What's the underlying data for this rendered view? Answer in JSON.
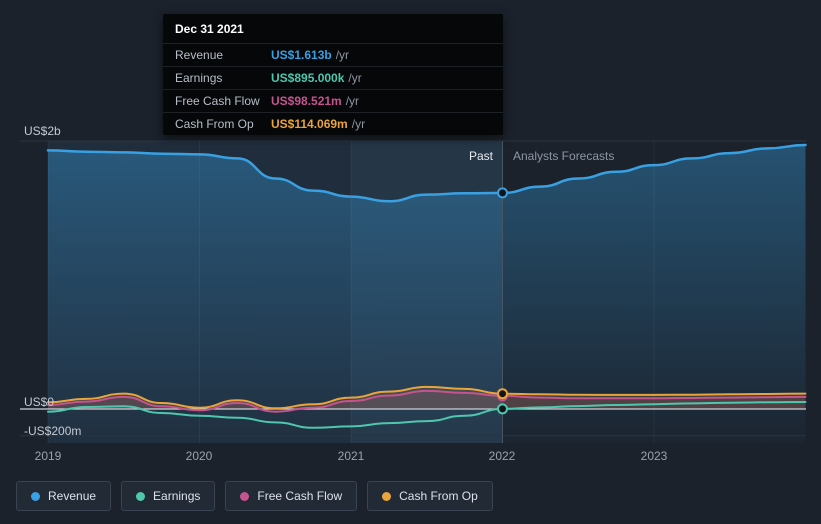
{
  "header": {
    "past_label": "Past",
    "forecast_label": "Analysts Forecasts"
  },
  "tooltip": {
    "date": "Dec 31 2021",
    "rows": [
      {
        "label": "Revenue",
        "value": "US$1.613b",
        "suffix": "/yr"
      },
      {
        "label": "Earnings",
        "value": "US$895.000k",
        "suffix": "/yr"
      },
      {
        "label": "Free Cash Flow",
        "value": "US$98.521m",
        "suffix": "/yr"
      },
      {
        "label": "Cash From Op",
        "value": "US$114.069m",
        "suffix": "/yr"
      }
    ]
  },
  "axis": {
    "y_labels": [
      "US$2b",
      "US$0",
      "-US$200m"
    ],
    "x_ticks": [
      "2019",
      "2020",
      "2021",
      "2022",
      "2023"
    ]
  },
  "chart_data": {
    "type": "line",
    "title": "",
    "xlabel": "",
    "ylabel": "US$",
    "units": "US$ billions per year",
    "xlim": [
      2019,
      2024.05
    ],
    "ylim": [
      -0.25,
      2.1
    ],
    "grid": "horizontal",
    "legend_position": "bottom-left",
    "past_until": 2022,
    "hover_x": 2022,
    "hover_band": [
      2021,
      2022
    ],
    "x": [
      2019,
      2019.25,
      2019.5,
      2019.75,
      2020,
      2020.25,
      2020.5,
      2020.75,
      2021,
      2021.25,
      2021.5,
      2021.75,
      2022,
      2022.25,
      2022.5,
      2022.75,
      2023,
      2023.25,
      2023.5,
      2023.75,
      2024
    ],
    "series": [
      {
        "name": "Revenue",
        "color": "#38a1e3",
        "value_at_hover": "US$1.613b/yr",
        "values": [
          1.93,
          1.92,
          1.915,
          1.905,
          1.9,
          1.87,
          1.72,
          1.63,
          1.585,
          1.55,
          1.6,
          1.61,
          1.613,
          1.66,
          1.72,
          1.77,
          1.82,
          1.87,
          1.91,
          1.945,
          1.97
        ]
      },
      {
        "name": "Earnings",
        "color": "#4fc6ae",
        "value_at_hover": "US$895.000k/yr",
        "values": [
          -0.02,
          0.015,
          0.02,
          -0.03,
          -0.05,
          -0.065,
          -0.1,
          -0.14,
          -0.13,
          -0.105,
          -0.09,
          -0.05,
          0.001,
          0.012,
          0.022,
          0.03,
          0.036,
          0.042,
          0.047,
          0.05,
          0.052
        ]
      },
      {
        "name": "Free Cash Flow",
        "color": "#c5548e",
        "value_at_hover": "US$98.521m/yr",
        "values": [
          0.03,
          0.055,
          0.09,
          0.02,
          -0.01,
          0.045,
          -0.02,
          0.01,
          0.06,
          0.1,
          0.135,
          0.12,
          0.0985,
          0.085,
          0.08,
          0.08,
          0.08,
          0.082,
          0.085,
          0.088,
          0.09
        ]
      },
      {
        "name": "Cash From Op",
        "color": "#e9a43c",
        "value_at_hover": "US$114.069m/yr",
        "values": [
          0.05,
          0.075,
          0.115,
          0.045,
          0.01,
          0.065,
          0.005,
          0.035,
          0.085,
          0.13,
          0.165,
          0.15,
          0.114,
          0.11,
          0.106,
          0.105,
          0.105,
          0.107,
          0.11,
          0.112,
          0.115
        ]
      }
    ]
  }
}
